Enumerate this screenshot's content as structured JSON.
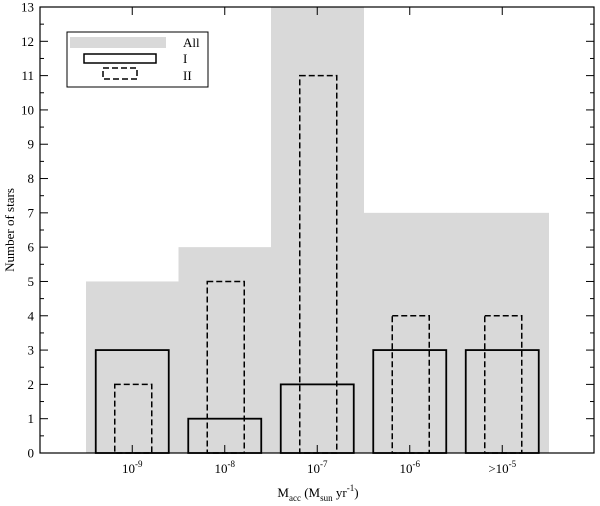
{
  "chart_data": {
    "type": "bar",
    "categories": [
      {
        "base": "10",
        "exp": "-9"
      },
      {
        "base": "10",
        "exp": "-8"
      },
      {
        "base": "10",
        "exp": "-7"
      },
      {
        "base": "10",
        "exp": "-6"
      },
      {
        "base": ">10",
        "exp": "-5"
      }
    ],
    "series": [
      {
        "name": "All",
        "style": "filled-gray",
        "values": [
          5,
          6,
          13,
          7,
          7
        ]
      },
      {
        "name": "I",
        "style": "solid-outline",
        "values": [
          3,
          1,
          2,
          3,
          3
        ]
      },
      {
        "name": "II",
        "style": "dashed-outline",
        "values": [
          2,
          5,
          11,
          4,
          4
        ]
      }
    ],
    "ylabel": "Number of stars",
    "xlabel": {
      "main": "M",
      "main_sub": "acc",
      "paren_open": " (M",
      "unit_sub": "sun",
      "unit_rest": " yr",
      "unit_sup": "-1",
      "paren_close": ")"
    },
    "ylim": [
      0,
      13
    ],
    "yticks": [
      0,
      1,
      2,
      3,
      4,
      5,
      6,
      7,
      8,
      9,
      10,
      11,
      12,
      13
    ],
    "grid": false,
    "legend_position": "top-left",
    "colors": {
      "all_fill": "#d9d9d9",
      "outline": "#000000"
    }
  }
}
